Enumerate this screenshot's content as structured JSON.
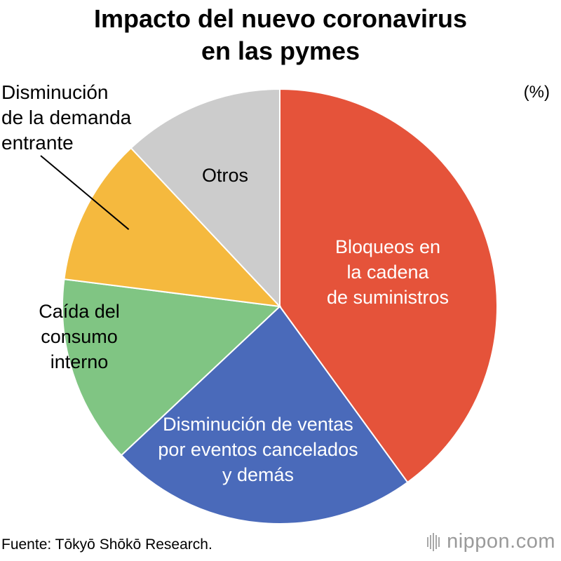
{
  "title": [
    "Impacto del nuevo coronavirus",
    "en las pymes"
  ],
  "unit_label": "(%)",
  "source": "Fuente: Tōkyō Shōkō Research.",
  "logo": {
    "name": "nippon",
    "suffix": ".com",
    "text_color": "#9a9a9a"
  },
  "chart_data": {
    "type": "pie",
    "title": "Impacto del nuevo coronavirus en las pymes",
    "unit": "%",
    "legend": "none",
    "start": "top",
    "direction": "clockwise",
    "slices": [
      {
        "label_lines": [
          "Bloqueos en",
          "la cadena",
          "de suministros"
        ],
        "value": 40,
        "color": "#e5533a",
        "label_color": "#ffffff",
        "label_position": "inside"
      },
      {
        "label_lines": [
          "Disminución de ventas",
          "por eventos cancelados",
          "y demás"
        ],
        "value": 23,
        "color": "#4a6aba",
        "label_color": "#ffffff",
        "label_position": "inside"
      },
      {
        "label_lines": [
          "Caída del",
          "consumo",
          "interno"
        ],
        "value": 14,
        "color": "#80c583",
        "label_color": "#000000",
        "label_position": "inside"
      },
      {
        "label_lines": [
          "Disminución",
          "de la demanda",
          "entrante"
        ],
        "value": 11,
        "color": "#f5b93e",
        "label_color": "#000000",
        "label_position": "outside-leader"
      },
      {
        "label_lines": [
          "Otros"
        ],
        "value": 12,
        "color": "#cccccc",
        "label_color": "#000000",
        "label_position": "inside"
      }
    ]
  }
}
